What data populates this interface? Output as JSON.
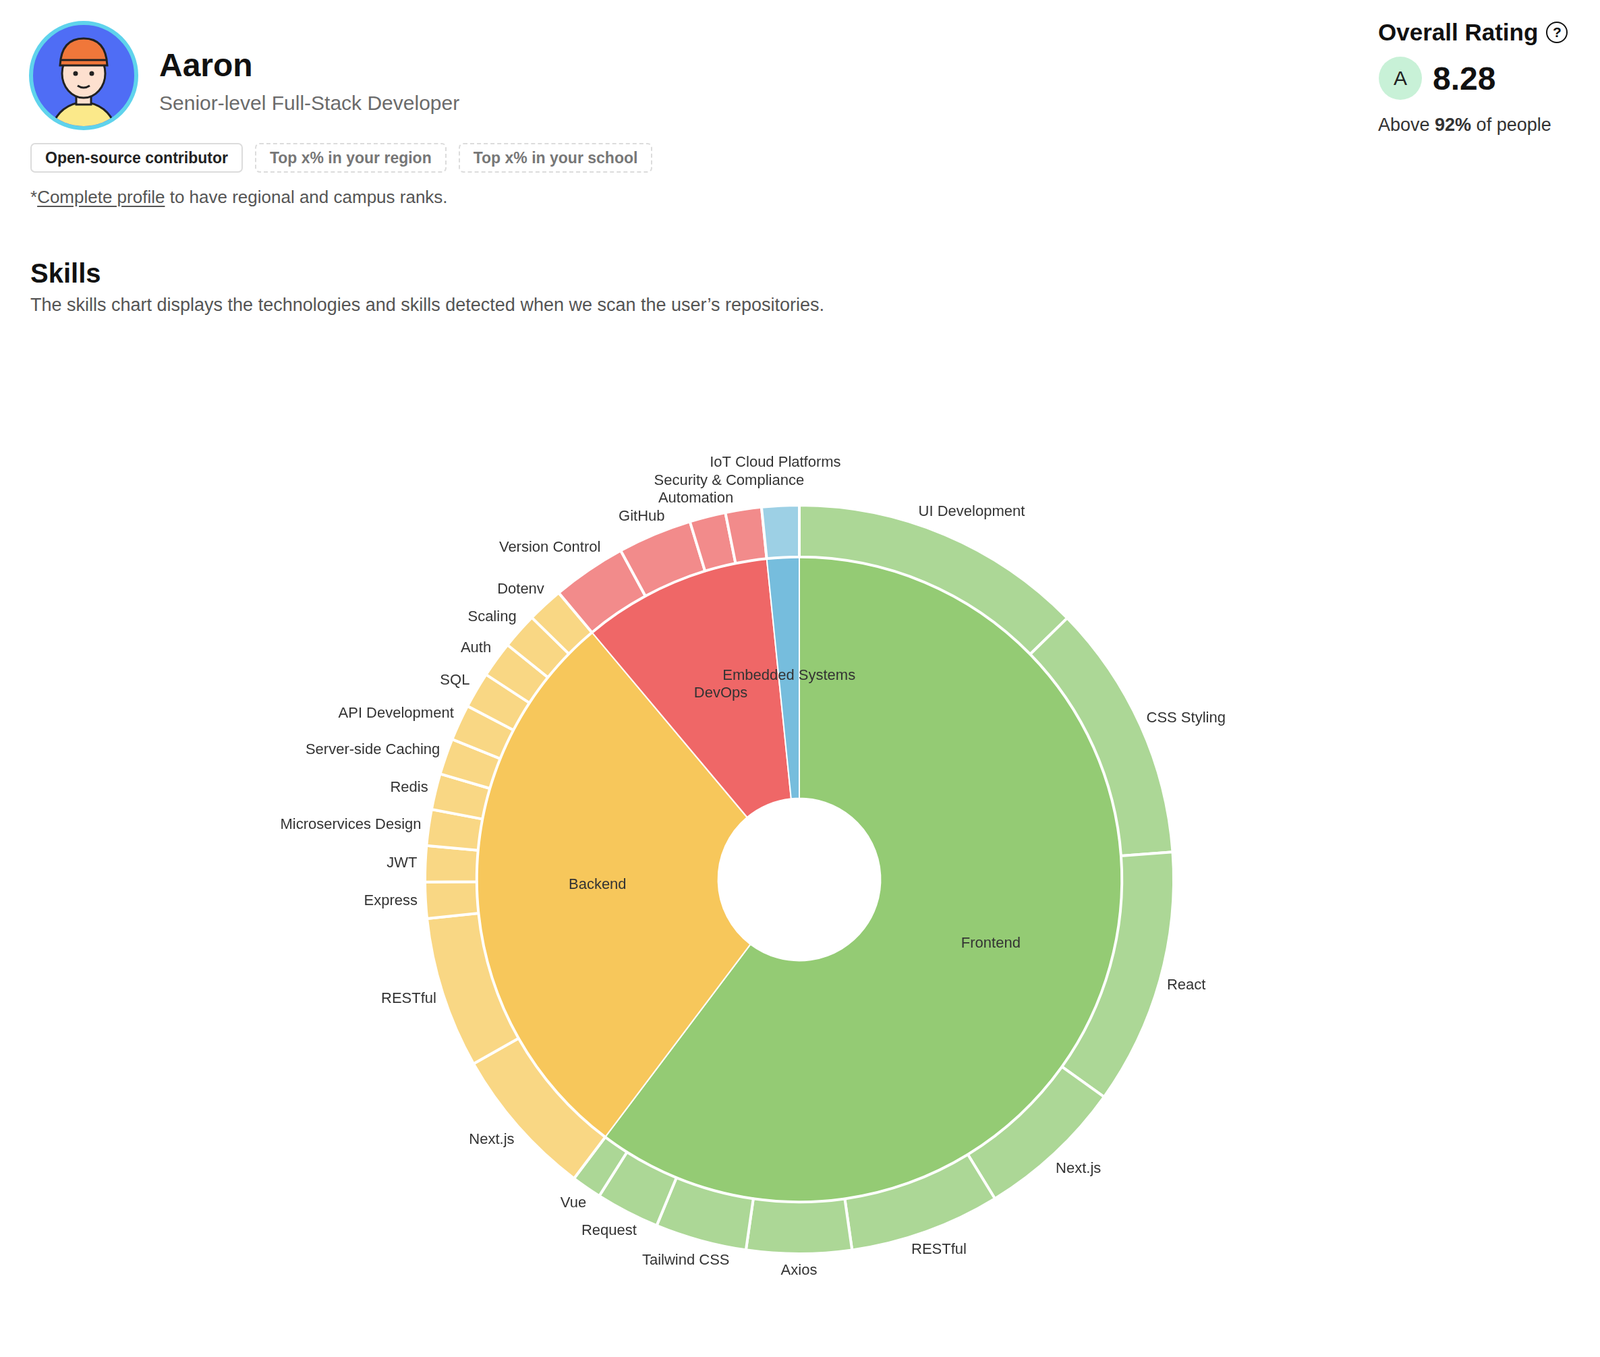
{
  "profile": {
    "name": "Aaron",
    "role": "Senior-level Full-Stack Developer",
    "badges": [
      {
        "text": "Open-source contributor",
        "dashed": false
      },
      {
        "text": "Top x% in your region",
        "dashed": true
      },
      {
        "text": "Top x% in your school",
        "dashed": true
      }
    ],
    "note": {
      "prefix": "*",
      "link": "Complete profile",
      "suffix": " to have regional and campus ranks."
    }
  },
  "rating": {
    "title": "Overall Rating",
    "help": "?",
    "grade": "A",
    "score": "8.28",
    "comparison": {
      "prefix": "Above ",
      "value": "92%",
      "suffix": " of people"
    }
  },
  "chart_data": {
    "type": "sunburst",
    "title": "Skills",
    "subtitle": "The skills chart displays the technologies and skills detected when we scan the user’s repositories.",
    "groups": [
      {
        "name": "Frontend",
        "value": 217,
        "color": "#94cb74",
        "children": [
          {
            "name": "UI Development",
            "value": 45.7,
            "color": "#acd796"
          },
          {
            "name": "CSS Styling",
            "value": 40.1,
            "color": "#acd796"
          },
          {
            "name": "React",
            "value": 39.7,
            "color": "#acd796"
          },
          {
            "name": "Next.js",
            "value": 23,
            "color": "#acd796"
          },
          {
            "name": "RESTful",
            "value": 23.4,
            "color": "#acd796"
          },
          {
            "name": "Axios",
            "value": 16.3,
            "color": "#acd796"
          },
          {
            "name": "Tailwind CSS",
            "value": 14.2,
            "color": "#acd796"
          },
          {
            "name": "Request",
            "value": 9.9,
            "color": "#acd796"
          },
          {
            "name": "Vue",
            "value": 4.7,
            "color": "#acd796"
          }
        ]
      },
      {
        "name": "Backend",
        "value": 103,
        "color": "#f7c75b",
        "children": [
          {
            "name": "Next.js",
            "value": 23.5,
            "color": "#f9d784"
          },
          {
            "name": "RESTful",
            "value": 23.5,
            "color": "#f9d784"
          },
          {
            "name": "Express",
            "value": 5.6,
            "color": "#f9d784"
          },
          {
            "name": "JWT",
            "value": 5.6,
            "color": "#f9d784"
          },
          {
            "name": "Microservices Design",
            "value": 5.6,
            "color": "#f9d784"
          },
          {
            "name": "Redis",
            "value": 5.6,
            "color": "#f9d784"
          },
          {
            "name": "Server-side Caching",
            "value": 5.6,
            "color": "#f9d784"
          },
          {
            "name": "API Development",
            "value": 5.6,
            "color": "#f9d784"
          },
          {
            "name": "SQL",
            "value": 5.6,
            "color": "#f9d784"
          },
          {
            "name": "Auth",
            "value": 5.6,
            "color": "#f9d784"
          },
          {
            "name": "Scaling",
            "value": 5.6,
            "color": "#f9d784"
          },
          {
            "name": "Dotenv",
            "value": 5.6,
            "color": "#f9d784"
          }
        ]
      },
      {
        "name": "DevOps",
        "value": 34.2,
        "color": "#ef6767",
        "children": [
          {
            "name": "Version Control",
            "value": 11.5,
            "color": "#f28b8b"
          },
          {
            "name": "GitHub",
            "value": 11.5,
            "color": "#f28b8b"
          },
          {
            "name": "Automation",
            "value": 5.6,
            "color": "#f28b8b"
          },
          {
            "name": "Security & Compliance",
            "value": 5.6,
            "color": "#f28b8b"
          }
        ]
      },
      {
        "name": "Embedded Systems",
        "value": 5.8,
        "color": "#76bddd",
        "children": [
          {
            "name": "IoT Cloud Platforms",
            "value": 5.8,
            "color": "#9dd0e5"
          }
        ]
      }
    ]
  }
}
